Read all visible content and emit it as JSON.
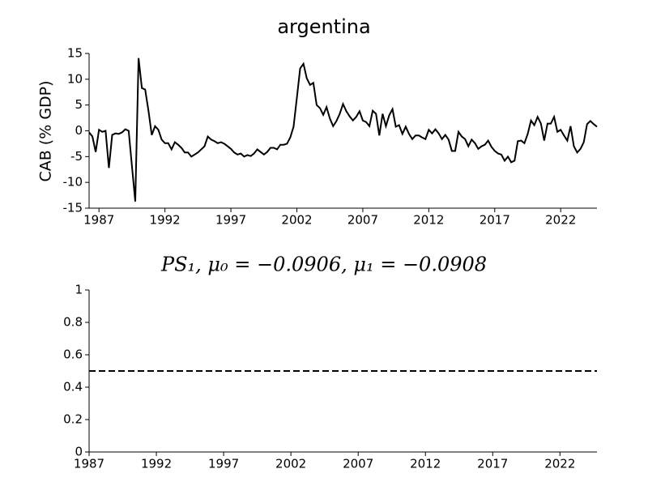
{
  "chart_data": [
    {
      "type": "line",
      "title": "argentina",
      "ylabel": "CAB (% GDP)",
      "color": "#000000",
      "linestyle": "solid",
      "x": [
        1986.25,
        1986.5,
        1986.75,
        1987,
        1987.25,
        1987.5,
        1987.75,
        1988,
        1988.25,
        1988.5,
        1988.75,
        1989,
        1989.25,
        1989.5,
        1989.75,
        1990,
        1990.25,
        1990.5,
        1990.75,
        1991,
        1991.25,
        1991.5,
        1991.75,
        1992,
        1992.25,
        1992.5,
        1992.75,
        1993,
        1993.25,
        1993.5,
        1993.75,
        1994,
        1994.25,
        1994.5,
        1994.75,
        1995,
        1995.25,
        1995.5,
        1995.75,
        1996,
        1996.25,
        1996.5,
        1996.75,
        1997,
        1997.25,
        1997.5,
        1997.75,
        1998,
        1998.25,
        1998.5,
        1998.75,
        1999,
        1999.25,
        1999.5,
        1999.75,
        2000,
        2000.25,
        2000.5,
        2000.75,
        2001,
        2001.25,
        2001.5,
        2001.75,
        2002,
        2002.25,
        2002.5,
        2002.75,
        2003,
        2003.25,
        2003.5,
        2003.75,
        2004,
        2004.25,
        2004.5,
        2004.75,
        2005,
        2005.25,
        2005.5,
        2005.75,
        2006,
        2006.25,
        2006.5,
        2006.75,
        2007,
        2007.25,
        2007.5,
        2007.75,
        2008,
        2008.25,
        2008.5,
        2008.75,
        2009,
        2009.25,
        2009.5,
        2009.75,
        2010,
        2010.25,
        2010.5,
        2010.75,
        2011,
        2011.25,
        2011.5,
        2011.75,
        2012,
        2012.25,
        2012.5,
        2012.75,
        2013,
        2013.25,
        2013.5,
        2013.75,
        2014,
        2014.25,
        2014.5,
        2014.75,
        2015,
        2015.25,
        2015.5,
        2015.75,
        2016,
        2016.25,
        2016.5,
        2016.75,
        2017,
        2017.25,
        2017.5,
        2017.75,
        2018,
        2018.25,
        2018.5,
        2018.75,
        2019,
        2019.25,
        2019.5,
        2019.75,
        2020,
        2020.25,
        2020.5,
        2020.75,
        2021,
        2021.25,
        2021.5,
        2021.75,
        2022,
        2022.25,
        2022.5,
        2022.75,
        2023,
        2023.25,
        2023.5,
        2023.75,
        2024,
        2024.25,
        2024.5,
        2024.75
      ],
      "values": [
        -0.3,
        -1.1,
        -4.1,
        0.2,
        -0.2,
        0,
        -7.2,
        -0.8,
        -0.5,
        -0.6,
        -0.3,
        0.3,
        0,
        -6.9,
        -13.7,
        14.1,
        8.3,
        8.0,
        3.9,
        -0.8,
        0.9,
        0.2,
        -1.7,
        -2.4,
        -2.4,
        -3.6,
        -2.2,
        -2.7,
        -3.3,
        -4.2,
        -4.2,
        -5.0,
        -4.6,
        -4.2,
        -3.6,
        -3.0,
        -1.1,
        -1.7,
        -2.0,
        -2.4,
        -2.2,
        -2.5,
        -3.0,
        -3.5,
        -4.2,
        -4.6,
        -4.4,
        -5.0,
        -4.7,
        -4.9,
        -4.4,
        -3.6,
        -4.1,
        -4.6,
        -4.1,
        -3.3,
        -3.3,
        -3.6,
        -2.7,
        -2.7,
        -2.5,
        -1.3,
        0.8,
        6.4,
        12.1,
        13.0,
        10.2,
        8.9,
        9.3,
        5.0,
        4.4,
        3.1,
        4.6,
        2.4,
        0.9,
        1.9,
        3.3,
        5.2,
        3.8,
        2.8,
        2.0,
        2.7,
        3.8,
        2.0,
        1.7,
        0.9,
        3.9,
        3.3,
        -0.9,
        3.3,
        0.9,
        3.0,
        4.2,
        0.8,
        1.1,
        -0.6,
        0.8,
        -0.6,
        -1.6,
        -0.9,
        -0.9,
        -1.3,
        -1.6,
        0.2,
        -0.5,
        0.3,
        -0.5,
        -1.6,
        -0.8,
        -1.7,
        -3.9,
        -3.9,
        -0.2,
        -1.1,
        -1.6,
        -3.0,
        -1.7,
        -2.4,
        -3.5,
        -3.0,
        -2.7,
        -1.9,
        -3.1,
        -3.9,
        -4.4,
        -4.6,
        -5.8,
        -5.0,
        -6.1,
        -5.8,
        -2.0,
        -1.9,
        -2.4,
        -0.6,
        2.0,
        1.1,
        2.7,
        1.4,
        -1.9,
        1.4,
        1.4,
        2.7,
        -0.2,
        0.2,
        -0.9,
        -1.9,
        0.9,
        -3.0,
        -4.2,
        -3.5,
        -2.2,
        1.3,
        1.9,
        1.3,
        0.8
      ],
      "xlim": [
        1986.25,
        2024.75
      ],
      "xticks": [
        1987,
        1992,
        1997,
        2002,
        2007,
        2012,
        2017,
        2022
      ],
      "ylim": [
        -15,
        15
      ],
      "yticks": [
        -15,
        -10,
        -5,
        0,
        5,
        10,
        15
      ]
    },
    {
      "type": "line",
      "title": "PS₁, μ₀ = −0.0906, μ₁ = −0.0908",
      "color": "#000000",
      "linestyle": "dashed",
      "x": [
        1987,
        2024.75
      ],
      "values": [
        0.5,
        0.5
      ],
      "xlim": [
        1987,
        2024.75
      ],
      "xticks": [
        1987,
        1992,
        1997,
        2002,
        2007,
        2012,
        2017,
        2022
      ],
      "ylim": [
        0,
        1
      ],
      "yticks": [
        0,
        0.2,
        0.4,
        0.6,
        0.8,
        1
      ]
    }
  ]
}
